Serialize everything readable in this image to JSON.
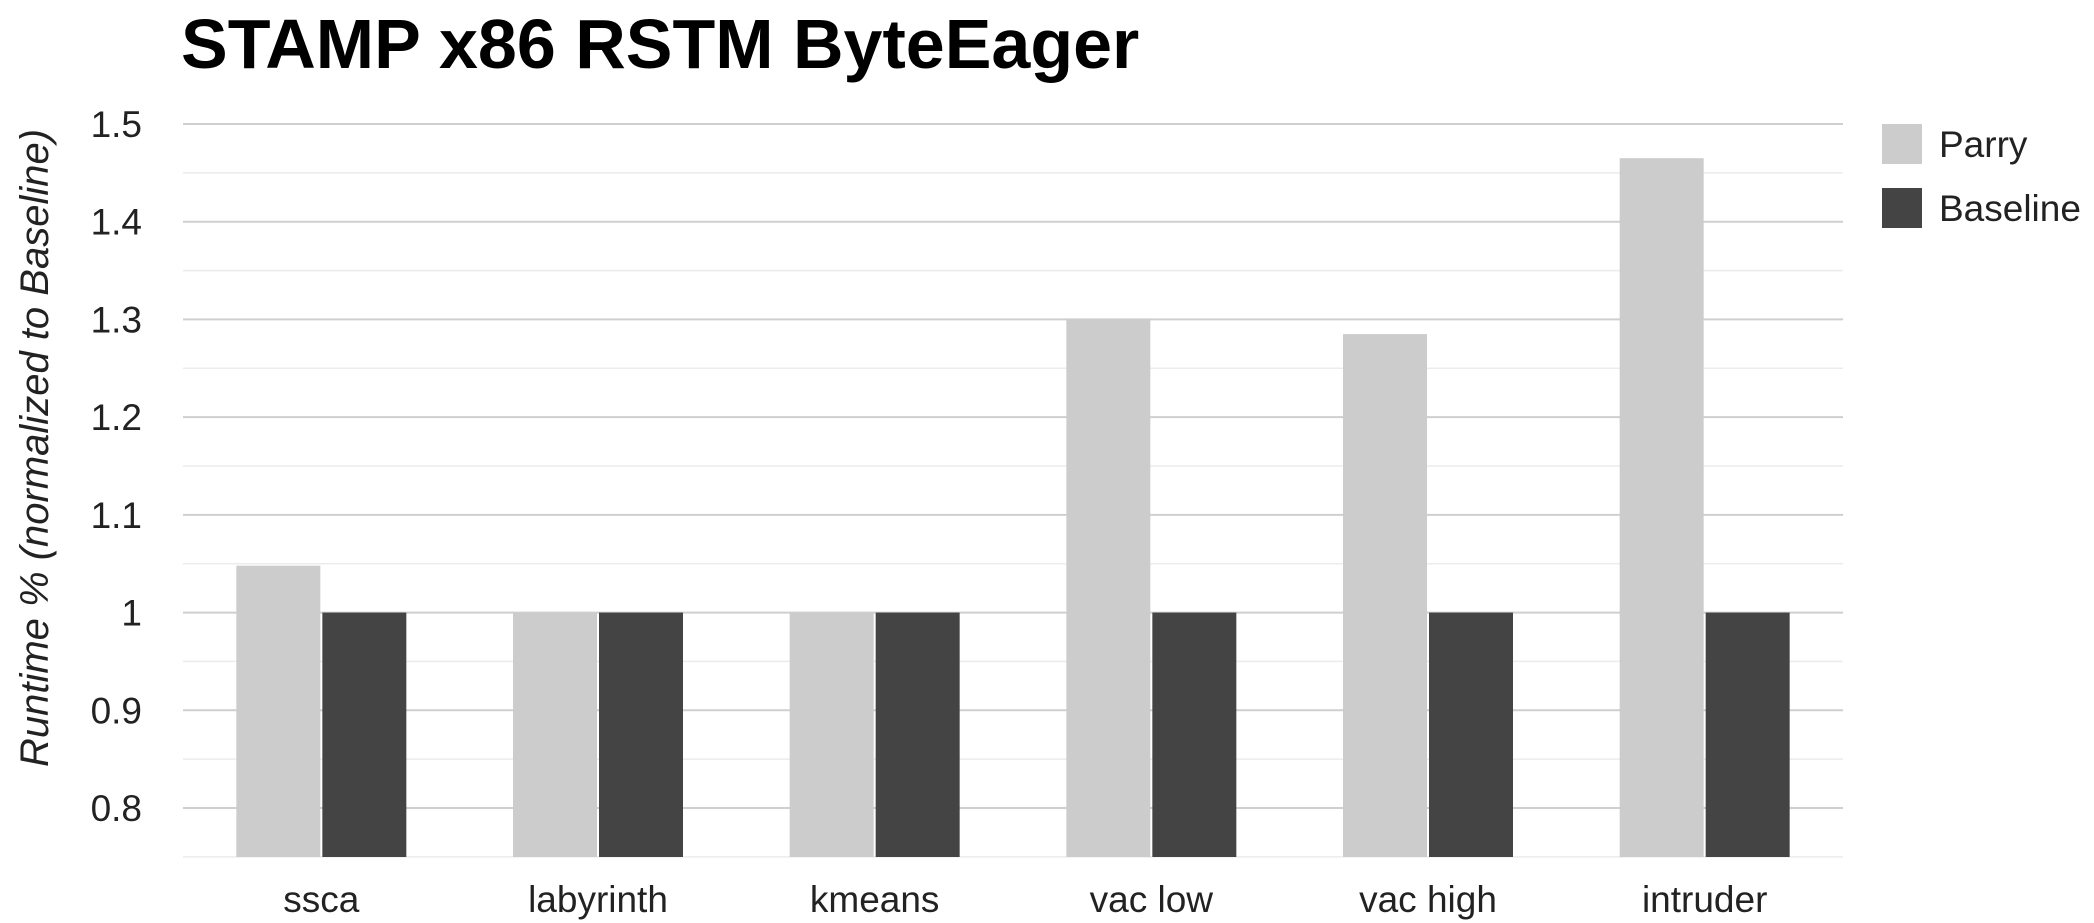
{
  "chart_data": {
    "type": "bar",
    "title": "STAMP x86 RSTM ByteEager",
    "ylabel": "Runtime % (normalized to Baseline)",
    "xlabel": "",
    "categories": [
      "ssca",
      "labyrinth",
      "kmeans",
      "vac low",
      "vac high",
      "intruder"
    ],
    "series": [
      {
        "name": "Parry",
        "color": "#cccccc",
        "values": [
          1.048,
          1.0,
          1.0,
          1.3,
          1.285,
          1.465
        ]
      },
      {
        "name": "Baseline",
        "color": "#444444",
        "values": [
          1.0,
          1.0,
          1.0,
          1.0,
          1.0,
          1.0
        ]
      }
    ],
    "ylim": [
      0.75,
      1.5
    ],
    "yticks": [
      "0.8",
      "0.9",
      "1",
      "1.1",
      "1.2",
      "1.3",
      "1.4",
      "1.5"
    ],
    "grid": true,
    "legend_position": "top-right"
  }
}
